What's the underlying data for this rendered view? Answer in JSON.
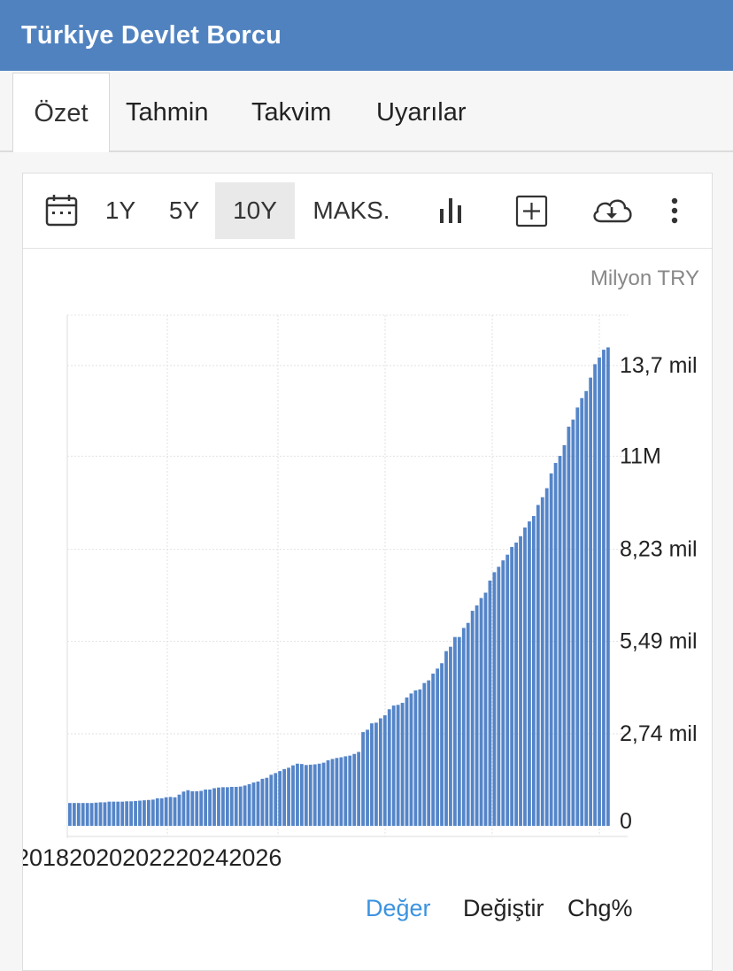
{
  "header": {
    "title": "Türkiye Devlet Borcu"
  },
  "tabs": [
    {
      "label": "Özet",
      "active": true
    },
    {
      "label": "Tahmin",
      "active": false
    },
    {
      "label": "Takvim",
      "active": false
    },
    {
      "label": "Uyarılar",
      "active": false
    }
  ],
  "toolbar": {
    "calendar_icon": "calendar-icon",
    "ranges": [
      "1Y",
      "5Y",
      "10Y",
      "MAKS."
    ],
    "selected_range": "10Y",
    "chart_type_icon": "bar-chart-icon",
    "add_icon": "plus-square-icon",
    "download_icon": "cloud-download-icon",
    "more_icon": "more-vertical-icon"
  },
  "unit_label": "Milyon TRY",
  "legend": [
    {
      "label": "Değer",
      "active": true
    },
    {
      "label": "Değiştir",
      "active": false
    },
    {
      "label": "Chg%",
      "active": false
    }
  ],
  "colors": {
    "bar": "#5585c8",
    "header": "#5082bf",
    "active_legend": "#3b93e0"
  },
  "chart_data": {
    "type": "bar",
    "x_tick_labels": [
      "2018",
      "2020",
      "2022",
      "2024",
      "2026"
    ],
    "y_tick_labels": [
      "0",
      "2,74 mil",
      "5,49 mil",
      "8,23 mil",
      "11M",
      "13,7 mil"
    ],
    "y_ticks": [
      0,
      2.74,
      5.49,
      8.23,
      11,
      13.7
    ],
    "ylim": [
      0,
      15.2
    ],
    "y_unit": "Milyon TRY (millions)",
    "grid": true,
    "values": [
      0.68,
      0.68,
      0.68,
      0.68,
      0.68,
      0.68,
      0.69,
      0.7,
      0.7,
      0.72,
      0.72,
      0.72,
      0.72,
      0.73,
      0.73,
      0.74,
      0.75,
      0.76,
      0.77,
      0.78,
      0.82,
      0.82,
      0.85,
      0.86,
      0.85,
      0.93,
      1.02,
      1.06,
      1.03,
      1.03,
      1.04,
      1.08,
      1.08,
      1.12,
      1.14,
      1.15,
      1.15,
      1.16,
      1.16,
      1.17,
      1.2,
      1.24,
      1.29,
      1.32,
      1.4,
      1.43,
      1.52,
      1.57,
      1.63,
      1.69,
      1.73,
      1.8,
      1.85,
      1.84,
      1.81,
      1.82,
      1.83,
      1.85,
      1.88,
      1.95,
      1.99,
      2.02,
      2.04,
      2.07,
      2.09,
      2.14,
      2.2,
      2.79,
      2.86,
      3.05,
      3.07,
      3.2,
      3.29,
      3.47,
      3.58,
      3.6,
      3.66,
      3.82,
      3.94,
      4.03,
      4.06,
      4.25,
      4.33,
      4.53,
      4.68,
      4.84,
      5.2,
      5.33,
      5.62,
      5.62,
      5.89,
      6.04,
      6.4,
      6.56,
      6.78,
      6.94,
      7.3,
      7.55,
      7.71,
      7.9,
      8.07,
      8.3,
      8.43,
      8.62,
      8.88,
      9.06,
      9.22,
      9.55,
      9.78,
      10.05,
      10.49,
      10.8,
      11.01,
      11.33,
      11.88,
      12.09,
      12.45,
      12.73,
      12.94,
      13.34,
      13.74,
      13.94,
      14.17,
      14.24
    ]
  }
}
